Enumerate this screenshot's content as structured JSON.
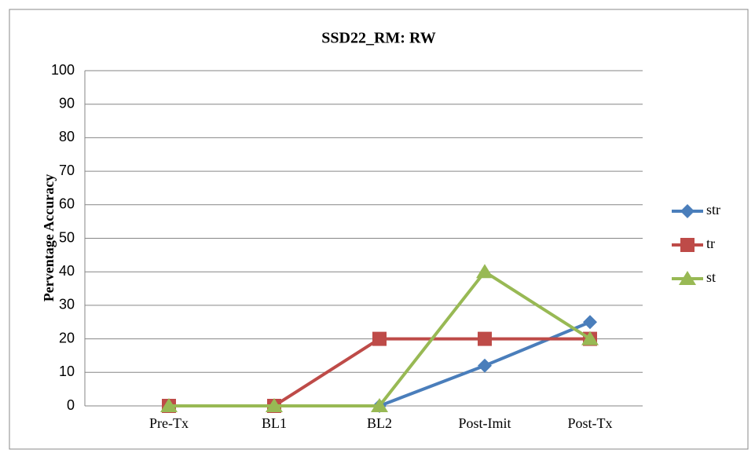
{
  "chart_data": {
    "type": "line",
    "title": "SSD22_RM: RW",
    "y_label": "Perventage Accuracy",
    "categories": [
      "Pre-Tx",
      "BL1",
      "BL2",
      "Post-Imit",
      "Post-Tx"
    ],
    "series": [
      {
        "name": "str",
        "color": "#4a7ebb",
        "marker": "diamond",
        "values": [
          0,
          0,
          0,
          12,
          25
        ]
      },
      {
        "name": "tr",
        "color": "#be4b48",
        "marker": "square",
        "values": [
          0,
          0,
          20,
          20,
          20
        ]
      },
      {
        "name": "st",
        "color": "#98b954",
        "marker": "triangle",
        "values": [
          0,
          0,
          0,
          40,
          20
        ]
      }
    ],
    "ylim": [
      0,
      100
    ],
    "yticks": [
      0,
      10,
      20,
      30,
      40,
      50,
      60,
      70,
      80,
      90,
      100
    ],
    "grid": true,
    "legend": "right"
  }
}
